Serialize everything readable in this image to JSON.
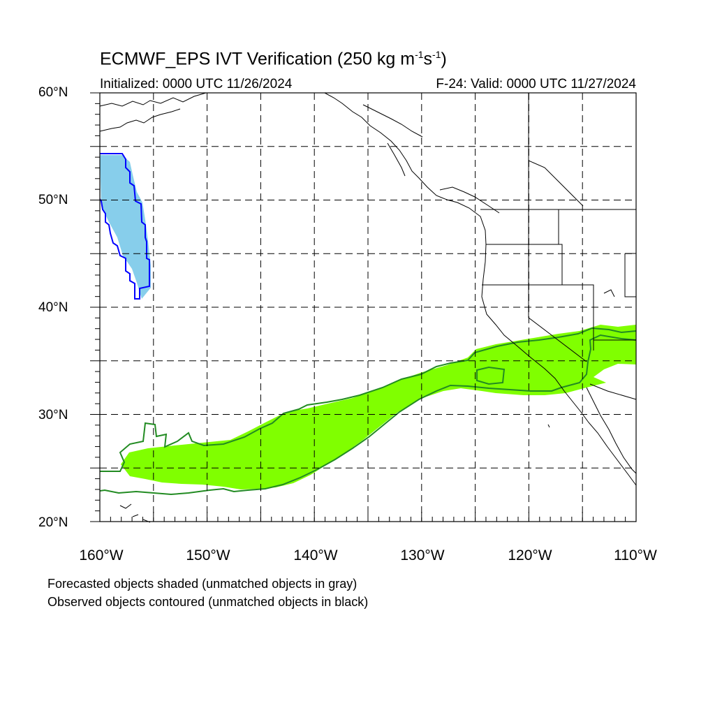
{
  "title_main": "ECMWF_EPS IVT Verification (250 kg m",
  "title_exp1": "-1",
  "title_mid": "s",
  "title_exp2": "-1",
  "title_end": ")",
  "init_text": "Initialized: 0000 UTC 11/26/2024",
  "valid_text": "F-24: Valid: 0000 UTC 11/27/2024",
  "lat_labels": [
    "60°N",
    "50°N",
    "40°N",
    "30°N",
    "20°N"
  ],
  "lon_labels": [
    "160°W",
    "150°W",
    "140°W",
    "130°W",
    "120°W",
    "110°W"
  ],
  "notes": {
    "line1": "Forecasted objects shaded (unmatched objects in gray)",
    "line2": "Observed objects contoured (unmatched objects in black)"
  },
  "colors": {
    "forecast_north": "#87ceeb",
    "observed_north": "#0000ff",
    "forecast_south": "#80ff00",
    "observed_south": "#228b22",
    "coast": "#000000",
    "grid": "#000000"
  },
  "map_extent": {
    "lon": [
      -160,
      -110
    ],
    "lat": [
      20,
      60
    ]
  }
}
